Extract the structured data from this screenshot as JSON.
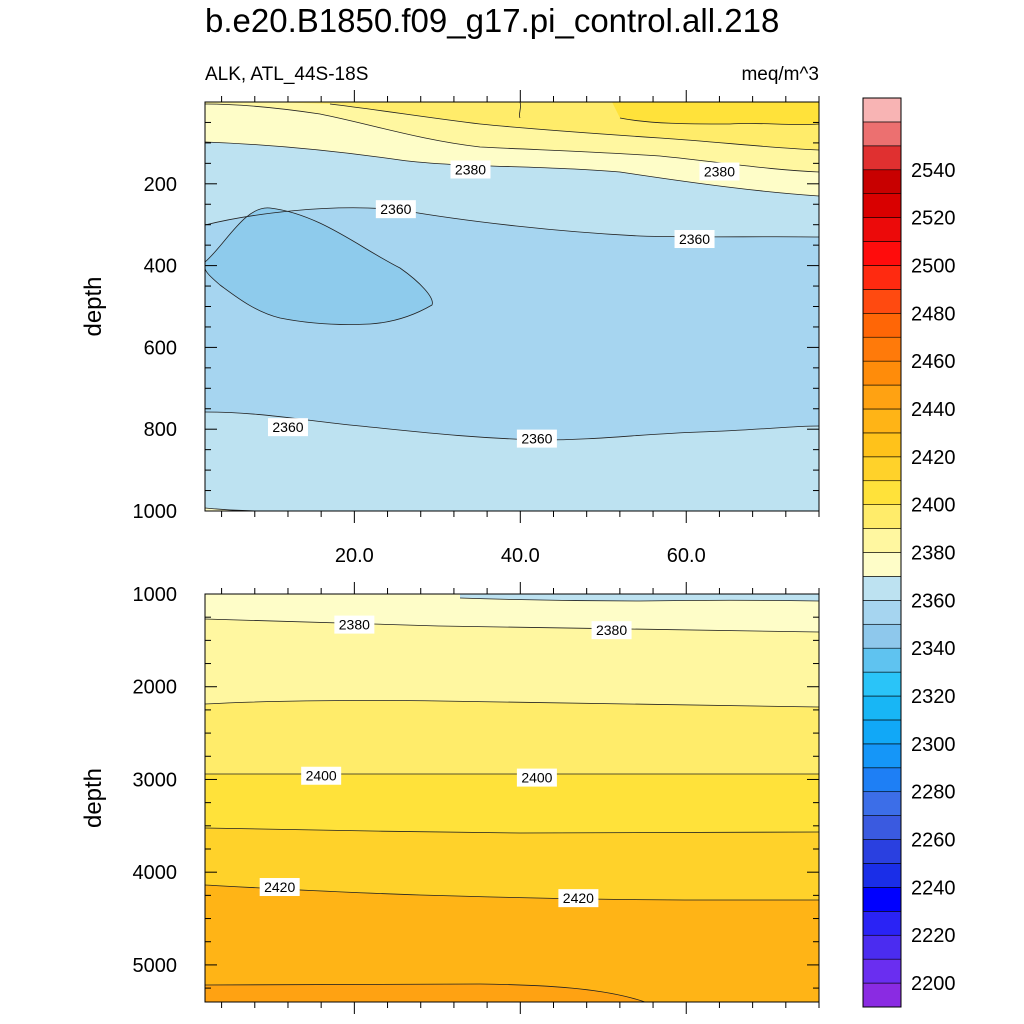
{
  "title": "b.e20.B1850.f09_g17.pi_control.all.218",
  "subtitle_left": "ALK, ATL_44S-18S",
  "subtitle_right": "meq/m^3",
  "chart_data": {
    "type": "contour",
    "variable": "ALK",
    "region": "ATL_44S-18S",
    "units": "meq/m^3",
    "ylabel": "depth",
    "xlim": [
      2,
      76
    ],
    "x_ticks": [
      20,
      40,
      60
    ],
    "x_tick_labels": [
      "20.0",
      "40.0",
      "60.0"
    ],
    "panels": [
      {
        "name": "upper",
        "ylim": [
          0,
          1000
        ],
        "y_ticks": [
          200,
          400,
          600,
          800,
          1000
        ],
        "y_tick_labels": [
          "200",
          "400",
          "600",
          "800",
          "1000"
        ],
        "contour_labels": [
          {
            "text": "2380",
            "x": 34,
            "y": 165
          },
          {
            "text": "2380",
            "x": 64,
            "y": 170
          },
          {
            "text": "2360",
            "x": 25,
            "y": 262
          },
          {
            "text": "2360",
            "x": 61,
            "y": 335
          },
          {
            "text": "2360",
            "x": 12,
            "y": 795
          },
          {
            "text": "2360",
            "x": 42,
            "y": 823
          }
        ]
      },
      {
        "name": "lower",
        "ylim": [
          1000,
          5400
        ],
        "y_ticks": [
          1000,
          2000,
          3000,
          4000,
          5000
        ],
        "y_tick_labels": [
          "1000",
          "2000",
          "3000",
          "4000",
          "5000"
        ],
        "contour_labels": [
          {
            "text": "2380",
            "x": 20,
            "y": 1330
          },
          {
            "text": "2380",
            "x": 51,
            "y": 1390
          },
          {
            "text": "2400",
            "x": 16,
            "y": 2960
          },
          {
            "text": "2400",
            "x": 42,
            "y": 2980
          },
          {
            "text": "2420",
            "x": 11,
            "y": 4160
          },
          {
            "text": "2420",
            "x": 47,
            "y": 4280
          }
        ]
      }
    ],
    "colorbar": {
      "levels": [
        2200,
        2220,
        2240,
        2260,
        2280,
        2300,
        2320,
        2340,
        2360,
        2380,
        2400,
        2420,
        2440,
        2460,
        2480,
        2500,
        2520,
        2540
      ],
      "labels": [
        "2200",
        "2220",
        "2240",
        "2260",
        "2280",
        "2300",
        "2320",
        "2340",
        "2360",
        "2380",
        "2400",
        "2420",
        "2440",
        "2460",
        "2480",
        "2500",
        "2520",
        "2540"
      ],
      "colors_bottom_to_top": [
        "#8a2be2",
        "#6a2ef0",
        "#4b2cf0",
        "#2a23f5",
        "#0000ff",
        "#1a2ee8",
        "#2a40e0",
        "#3a5ae0",
        "#3c6ee8",
        "#1e7ff5",
        "#1596f8",
        "#11a8f7",
        "#18b6f5",
        "#2ac4f8",
        "#5fc3f0",
        "#8ec8ec",
        "#a6d5f0",
        "#bde2f1",
        "#fefdc8",
        "#fff7a0",
        "#ffec6a",
        "#ffe23a",
        "#ffd22a",
        "#ffc21a",
        "#ffb416",
        "#ffa212",
        "#ff8c0a",
        "#ff7a0a",
        "#ff6606",
        "#ff4a10",
        "#ff2a10",
        "#ff0c0c",
        "#ec0a0a",
        "#d90000",
        "#c80000",
        "#e03030",
        "#ec7070",
        "#f8b4b4"
      ]
    },
    "fill_colors": {
      "below_2340": "#8ecbec",
      "2340_2360": "#a6d5f0",
      "2360_2370": "#bde2f1",
      "2370_2380": "#fefdc8",
      "2380_2390": "#fff7a0",
      "2390_2400": "#ffec6a",
      "2400_2410": "#ffe23a",
      "2410_2420": "#ffd22a",
      "2420_2430": "#ffc21a",
      "2430_2440": "#ffb416"
    }
  }
}
